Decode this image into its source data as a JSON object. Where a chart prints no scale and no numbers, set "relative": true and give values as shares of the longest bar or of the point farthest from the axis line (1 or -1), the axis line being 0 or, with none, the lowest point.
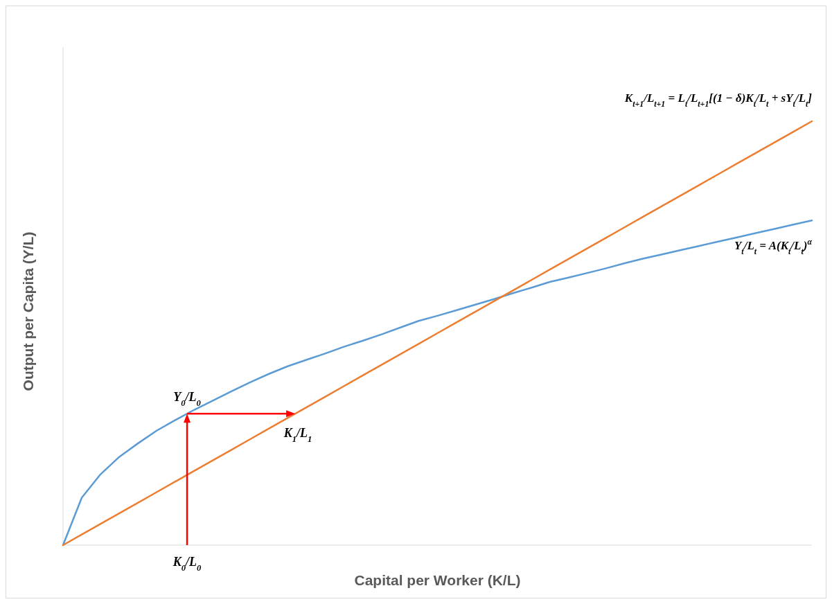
{
  "chart_data": {
    "type": "line",
    "relative": true,
    "xlabel": "Capital per Worker (K/L)",
    "ylabel": "Output per Capita (Y/L)",
    "marker": "none",
    "line_style": "solid",
    "categories": [
      null,
      null,
      null,
      null,
      null,
      null,
      null,
      null,
      null,
      null,
      null,
      null,
      null,
      null,
      null,
      null,
      null,
      null,
      null,
      null,
      null,
      null,
      null,
      null,
      null,
      null,
      null,
      null,
      null,
      null,
      null,
      null,
      null,
      null,
      null,
      null,
      null,
      null,
      null,
      null,
      null
    ],
    "series": [
      {
        "name": "Y$_{t}$/L$_{t}$ = A(K$_{t}$/L$_{t}$)$^{α}$",
        "color": "#5b9bd5",
        "values": [
          0,
          0.112,
          0.167,
          0.208,
          0.24,
          0.27,
          0.295,
          0.319,
          0.341,
          0.363,
          0.384,
          0.404,
          0.422,
          0.437,
          0.452,
          0.468,
          0.482,
          0.497,
          0.513,
          0.529,
          0.541,
          0.554,
          0.567,
          0.58,
          0.594,
          0.607,
          0.621,
          0.631,
          0.642,
          0.653,
          0.665,
          0.676,
          0.686,
          0.696,
          0.706,
          0.716,
          0.726,
          0.736,
          0.746,
          0.756,
          0.766
        ]
      },
      {
        "name": "K$_{t+1}$/L$_{t+1}$ = L$_{t}$/L$_{t+1}$[(1 − δ)K$_{t}$/L$_{t}$ + sY$_{t}$/L$_{t}$]",
        "color": "#ed7d31",
        "values": [
          0,
          0.025,
          0.05,
          0.075,
          0.1,
          0.125,
          0.15,
          0.175,
          0.2,
          0.225,
          0.25,
          0.275,
          0.3,
          0.325,
          0.35,
          0.375,
          0.4,
          0.425,
          0.45,
          0.475,
          0.5,
          0.525,
          0.55,
          0.575,
          0.6,
          0.625,
          0.65,
          0.675,
          0.7,
          0.725,
          0.75,
          0.775,
          0.8,
          0.825,
          0.85,
          0.875,
          0.9,
          0.925,
          0.95,
          0.975,
          1
        ]
      }
    ],
    "annotations": [
      "K$_{0}$/L$_{0}$",
      {
        "text": "Y$_{0}$/L$_{0}$",
        "y": 0.31
      },
      {
        "text": "K$_{1}$/L$_{1}$",
        "y": 0.31
      }
    ]
  }
}
